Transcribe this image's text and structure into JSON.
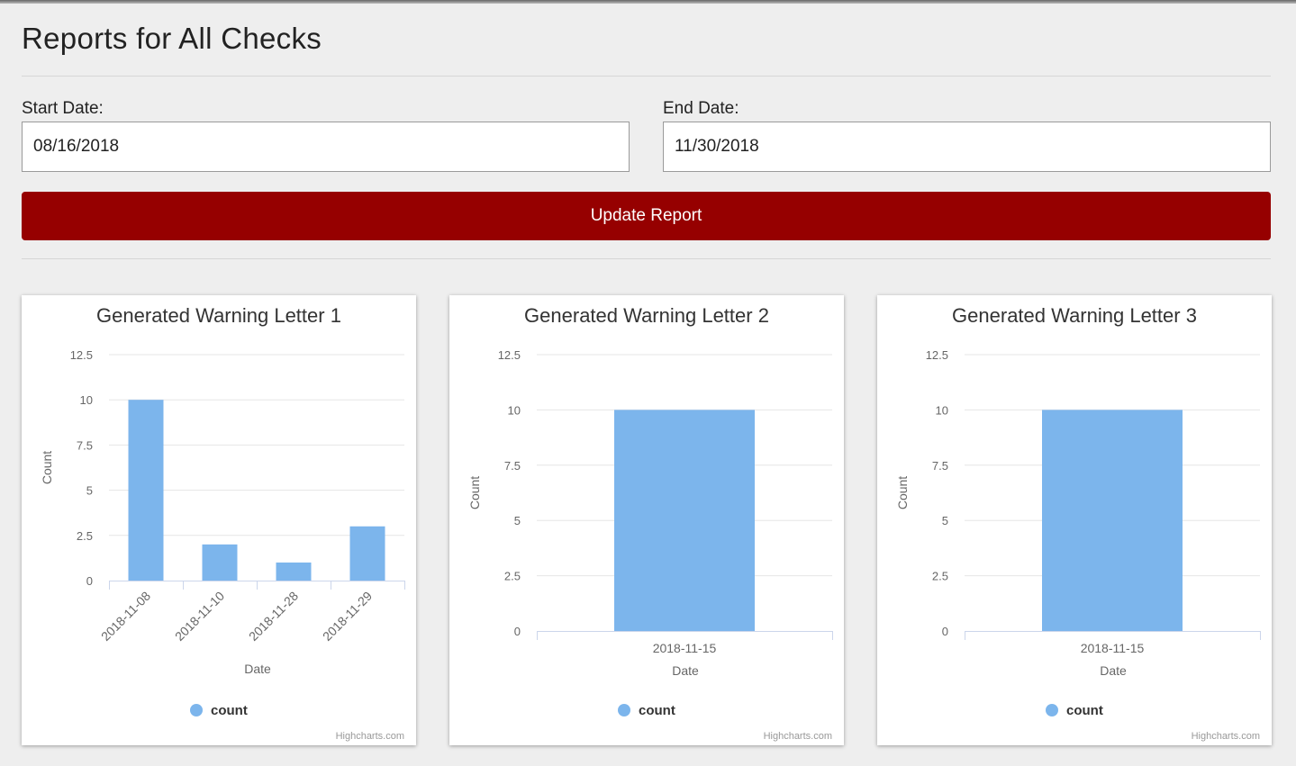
{
  "page": {
    "title": "Reports for All Checks"
  },
  "form": {
    "start_label": "Start Date:",
    "start_value": "08/16/2018",
    "end_label": "End Date:",
    "end_value": "11/30/2018",
    "update_button": "Update Report"
  },
  "colors": {
    "accent": "#960000",
    "bar": "#7cb5ec",
    "background": "#eeeeee"
  },
  "chart_data": [
    {
      "type": "bar",
      "title": "Generated Warning Letter 1",
      "categories": [
        "2018-11-08",
        "2018-11-10",
        "2018-11-28",
        "2018-11-29"
      ],
      "series": [
        {
          "name": "count",
          "values": [
            10,
            2,
            1,
            3
          ]
        }
      ],
      "xlabel": "Date",
      "ylabel": "Count",
      "ylim": [
        0,
        12.5
      ],
      "yticks": [
        0,
        2.5,
        5,
        7.5,
        10,
        12.5
      ],
      "ytick_labels": [
        "0",
        "2.5",
        "5",
        "7.5",
        "10",
        "12.5"
      ],
      "rotate_labels": true,
      "legend": "bottom-center",
      "credits": "Highcharts.com"
    },
    {
      "type": "bar",
      "title": "Generated Warning Letter 2",
      "categories": [
        "2018-11-15"
      ],
      "series": [
        {
          "name": "count",
          "values": [
            10
          ]
        }
      ],
      "xlabel": "Date",
      "ylabel": "Count",
      "ylim": [
        0,
        12.5
      ],
      "yticks": [
        0,
        2.5,
        5,
        7.5,
        10,
        12.5
      ],
      "ytick_labels": [
        "0",
        "2.5",
        "5",
        "7.5",
        "10",
        "12.5"
      ],
      "rotate_labels": false,
      "legend": "bottom-center",
      "credits": "Highcharts.com"
    },
    {
      "type": "bar",
      "title": "Generated Warning Letter 3",
      "categories": [
        "2018-11-15"
      ],
      "series": [
        {
          "name": "count",
          "values": [
            10
          ]
        }
      ],
      "xlabel": "Date",
      "ylabel": "Count",
      "ylim": [
        0,
        12.5
      ],
      "yticks": [
        0,
        2.5,
        5,
        7.5,
        10,
        12.5
      ],
      "ytick_labels": [
        "0",
        "2.5",
        "5",
        "7.5",
        "10",
        "12.5"
      ],
      "rotate_labels": false,
      "legend": "bottom-center",
      "credits": "Highcharts.com"
    }
  ]
}
